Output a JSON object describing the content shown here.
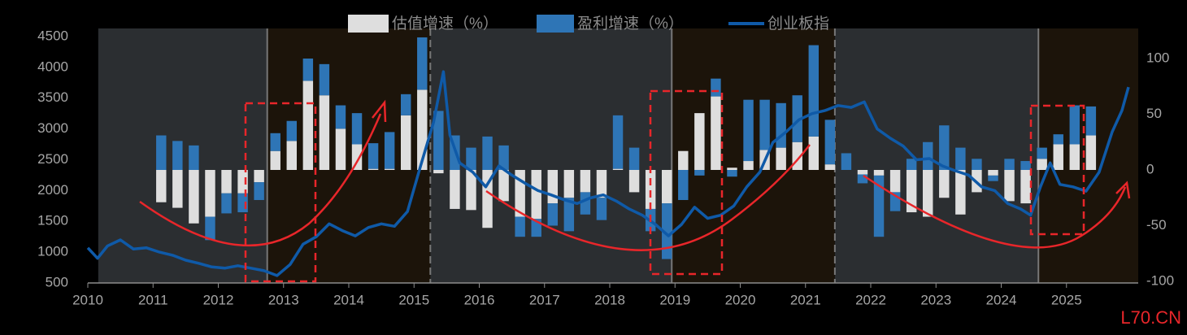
{
  "chart_data": {
    "type": "bar+line",
    "watermark": "L70.CN",
    "xlim": [
      2010,
      2025.95
    ],
    "xticks": [
      2010,
      2011,
      2012,
      2013,
      2014,
      2015,
      2016,
      2017,
      2018,
      2019,
      2020,
      2021,
      2022,
      2023,
      2024,
      2025
    ],
    "ylim": [
      500,
      4500
    ],
    "yticks": [
      500,
      1000,
      1500,
      2000,
      2500,
      3000,
      3500,
      4000,
      4500
    ],
    "y2lim": [
      -100,
      100
    ],
    "y2ticks": [
      -100,
      -50,
      0,
      50,
      100
    ],
    "shaded_periods": [
      {
        "start": 2010.16,
        "end": 2012.75,
        "color": "#2b2e31"
      },
      {
        "start": 2012.75,
        "end": 2015.25,
        "color": "#1c140a"
      },
      {
        "start": 2015.25,
        "end": 2018.95,
        "color": "#2b2e31"
      },
      {
        "start": 2018.95,
        "end": 2021.45,
        "color": "#1c140a"
      },
      {
        "start": 2021.45,
        "end": 2024.57,
        "color": "#2b2e31"
      },
      {
        "start": 2024.57,
        "end": 2026.1,
        "color": "#1c140a"
      }
    ],
    "bar_x": [
      2011.125,
      2011.375,
      2011.625,
      2011.875,
      2012.125,
      2012.375,
      2012.625,
      2012.875,
      2013.125,
      2013.375,
      2013.625,
      2013.875,
      2014.125,
      2014.375,
      2014.625,
      2014.875,
      2015.125,
      2015.375,
      2015.625,
      2015.875,
      2016.125,
      2016.375,
      2016.625,
      2016.875,
      2017.125,
      2017.375,
      2017.625,
      2017.875,
      2018.125,
      2018.375,
      2018.625,
      2018.875,
      2019.125,
      2019.375,
      2019.625,
      2019.875,
      2020.125,
      2020.375,
      2020.625,
      2020.875,
      2021.125,
      2021.375,
      2021.625,
      2021.875,
      2022.125,
      2022.375,
      2022.625,
      2022.875,
      2023.125,
      2023.375,
      2023.625,
      2023.875,
      2024.125,
      2024.375,
      2024.625,
      2024.875,
      2025.125,
      2025.375
    ],
    "series": [
      {
        "name": "估值增速（%）",
        "color": "#dedede",
        "axis": "y2",
        "values": [
          -29,
          -34,
          -48,
          -42,
          -21,
          -21,
          -11,
          17,
          26,
          80,
          67,
          37,
          23,
          1,
          1,
          49,
          72,
          -3,
          -35,
          -36,
          -52,
          -28,
          -42,
          -44,
          -30,
          -25,
          -20,
          -25,
          1,
          -20,
          -35,
          -30,
          17,
          51,
          66,
          2,
          8,
          18,
          20,
          25,
          30,
          5,
          0,
          -4,
          -5,
          -20,
          -38,
          -42,
          -25,
          -40,
          -20,
          -5,
          -28,
          -30,
          10,
          23,
          23,
          31
        ]
      },
      {
        "name": "盈利增速（%）",
        "color": "#2e75b6",
        "axis": "y2",
        "values": [
          31,
          26,
          22,
          -21,
          -18,
          -17,
          -16,
          16,
          18,
          20,
          28,
          21,
          28,
          23,
          33,
          19,
          47,
          53,
          31,
          20,
          30,
          22,
          -18,
          -16,
          -20,
          -30,
          -20,
          -20,
          48,
          20,
          -20,
          -50,
          -27,
          -5,
          16,
          -6,
          55,
          45,
          40,
          42,
          82,
          40,
          15,
          -8,
          -55,
          -17,
          10,
          25,
          40,
          20,
          10,
          -5,
          10,
          8,
          10,
          9,
          35,
          26
        ]
      },
      {
        "name": "创业板指",
        "color": "#0f5aa8",
        "axis": "y",
        "x": [
          2010.0,
          2010.15,
          2010.3,
          2010.5,
          2010.7,
          2010.9,
          2011.1,
          2011.3,
          2011.5,
          2011.7,
          2011.9,
          2012.1,
          2012.3,
          2012.5,
          2012.7,
          2012.9,
          2013.1,
          2013.3,
          2013.5,
          2013.7,
          2013.9,
          2014.1,
          2014.3,
          2014.5,
          2014.7,
          2014.9,
          2015.1,
          2015.3,
          2015.45,
          2015.55,
          2015.7,
          2015.9,
          2016.1,
          2016.3,
          2016.5,
          2016.7,
          2016.9,
          2017.1,
          2017.3,
          2017.5,
          2017.7,
          2017.9,
          2018.1,
          2018.3,
          2018.5,
          2018.7,
          2018.9,
          2019.1,
          2019.3,
          2019.5,
          2019.7,
          2019.9,
          2020.1,
          2020.3,
          2020.5,
          2020.7,
          2020.9,
          2021.1,
          2021.3,
          2021.5,
          2021.7,
          2021.9,
          2022.1,
          2022.3,
          2022.5,
          2022.7,
          2022.9,
          2023.1,
          2023.3,
          2023.5,
          2023.7,
          2023.9,
          2024.1,
          2024.3,
          2024.45,
          2024.6,
          2024.75,
          2024.9,
          2025.1,
          2025.3,
          2025.5,
          2025.7,
          2025.85,
          2025.95
        ],
        "values": [
          1070,
          900,
          1100,
          1200,
          1050,
          1070,
          1000,
          950,
          870,
          820,
          760,
          740,
          780,
          740,
          700,
          620,
          800,
          1130,
          1250,
          1460,
          1350,
          1265,
          1400,
          1460,
          1420,
          1660,
          2400,
          3110,
          3930,
          2900,
          2450,
          2300,
          2060,
          2400,
          2250,
          2120,
          2000,
          1930,
          1850,
          1790,
          1880,
          1930,
          1830,
          1700,
          1600,
          1450,
          1265,
          1450,
          1730,
          1550,
          1600,
          1750,
          2060,
          2300,
          2780,
          2950,
          3150,
          3250,
          3300,
          3380,
          3350,
          3440,
          3000,
          2850,
          2720,
          2500,
          2520,
          2400,
          2320,
          2250,
          2060,
          2000,
          1790,
          1700,
          1600,
          2060,
          2450,
          2100,
          2060,
          1990,
          2300,
          2950,
          3300,
          3680
        ]
      }
    ]
  }
}
